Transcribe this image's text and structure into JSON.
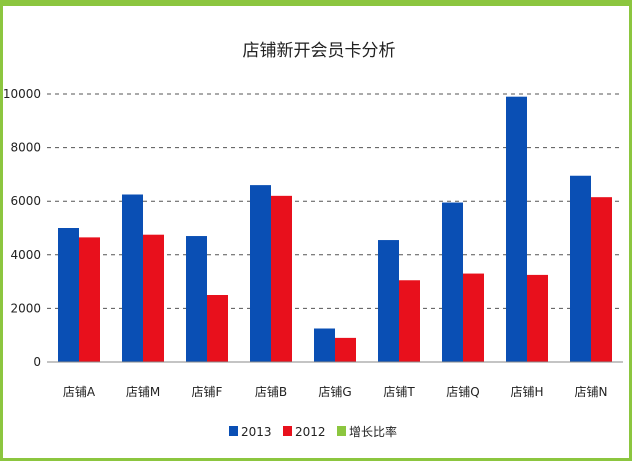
{
  "chart_data": {
    "type": "bar",
    "title": "店铺新开会员卡分析",
    "categories": [
      "店铺A",
      "店铺M",
      "店铺F",
      "店铺B",
      "店铺G",
      "店铺T",
      "店铺Q",
      "店铺H",
      "店铺N"
    ],
    "series": [
      {
        "name": "2013",
        "color": "#0a4fb4",
        "values": [
          5000,
          6250,
          4700,
          6600,
          1250,
          4550,
          5950,
          9900,
          6950
        ]
      },
      {
        "name": "2012",
        "color": "#e8101c",
        "values": [
          4650,
          4750,
          2500,
          6200,
          900,
          3050,
          3300,
          3250,
          6150
        ]
      }
    ],
    "legend_extra": {
      "name": "增长比率",
      "color": "#8cc63f"
    },
    "ylim": [
      0,
      10000
    ],
    "yticks": [
      0,
      2000,
      4000,
      6000,
      8000,
      10000
    ],
    "grid": true,
    "legend_position": "bottom"
  }
}
